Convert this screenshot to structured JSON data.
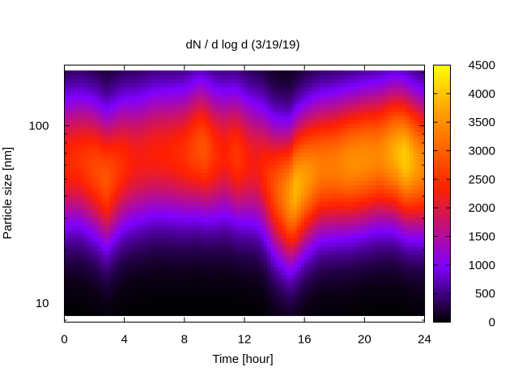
{
  "chart_data": {
    "type": "heatmap",
    "title": "dN / d log d (3/19/19)",
    "xlabel": "Time [hour]",
    "ylabel": "Particle size [nm]",
    "xlim": [
      0,
      24
    ],
    "ylim": [
      7.8,
      220
    ],
    "yscale": "log",
    "data_y_range": [
      8.5,
      205
    ],
    "x_ticks": [
      0,
      4,
      8,
      12,
      16,
      20,
      24
    ],
    "y_ticks": [
      10,
      100
    ],
    "colorbar": {
      "min": 0,
      "max": 4500,
      "ticks": [
        0,
        500,
        1000,
        1500,
        2000,
        2500,
        3000,
        3500,
        4000,
        4500
      ],
      "colors": [
        "#000000",
        "#7f00ff",
        "#ff2000",
        "#ffa000",
        "#ffff00"
      ],
      "stops": [
        0,
        0.22,
        0.52,
        0.82,
        1.0
      ]
    },
    "grid": false,
    "peak_size_nm_by_hour": [
      [
        0,
        62
      ],
      [
        1,
        64
      ],
      [
        2,
        58
      ],
      [
        2.8,
        50
      ],
      [
        4,
        62
      ],
      [
        5,
        65
      ],
      [
        6,
        70
      ],
      [
        7,
        70
      ],
      [
        8,
        70
      ],
      [
        9,
        75
      ],
      [
        10,
        70
      ],
      [
        11,
        70
      ],
      [
        12,
        65
      ],
      [
        13,
        60
      ],
      [
        14,
        45
      ],
      [
        15,
        40
      ],
      [
        16,
        50
      ],
      [
        17,
        58
      ],
      [
        18,
        60
      ],
      [
        19,
        62
      ],
      [
        20,
        65
      ],
      [
        21,
        68
      ],
      [
        22,
        70
      ],
      [
        23,
        64
      ],
      [
        24,
        60
      ]
    ],
    "peak_value_by_hour": [
      [
        0,
        2400
      ],
      [
        1,
        2500
      ],
      [
        2,
        2750
      ],
      [
        2.8,
        2900
      ],
      [
        3.5,
        2600
      ],
      [
        4.5,
        2300
      ],
      [
        5,
        2250
      ],
      [
        6,
        2300
      ],
      [
        7,
        2350
      ],
      [
        8,
        2500
      ],
      [
        8.7,
        2750
      ],
      [
        9.3,
        2900
      ],
      [
        10,
        2500
      ],
      [
        10.7,
        2300
      ],
      [
        11.5,
        2600
      ],
      [
        12.2,
        2300
      ],
      [
        12.8,
        2200
      ],
      [
        13.5,
        2500
      ],
      [
        14.5,
        3200
      ],
      [
        15.4,
        3900
      ],
      [
        16.2,
        3600
      ],
      [
        17,
        3300
      ],
      [
        18,
        3300
      ],
      [
        19,
        3500
      ],
      [
        20,
        3500
      ],
      [
        21,
        3400
      ],
      [
        22,
        3800
      ],
      [
        22.7,
        4100
      ],
      [
        23.4,
        3700
      ],
      [
        24,
        3400
      ]
    ]
  }
}
